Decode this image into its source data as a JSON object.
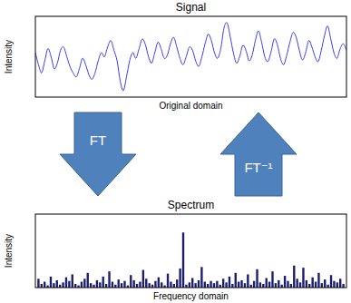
{
  "chart_data": [
    {
      "type": "line",
      "title": "Signal",
      "x_label": "Original domain",
      "y_label": "Intensity",
      "color": "#3a3aef",
      "tick_labels": false,
      "xlim": [
        0,
        99
      ],
      "ylim": [
        0,
        100
      ],
      "x": [
        0,
        1,
        2,
        3,
        4,
        5,
        6,
        7,
        8,
        9,
        10,
        11,
        12,
        13,
        14,
        15,
        16,
        17,
        18,
        19,
        20,
        21,
        22,
        23,
        24,
        25,
        26,
        27,
        28,
        29,
        30,
        31,
        32,
        33,
        34,
        35,
        36,
        37,
        38,
        39,
        40,
        41,
        42,
        43,
        44,
        45,
        46,
        47,
        48,
        49,
        50,
        51,
        52,
        53,
        54,
        55,
        56,
        57,
        58,
        59,
        60,
        61,
        62,
        63,
        64,
        65,
        66,
        67,
        68,
        69,
        70,
        71,
        72,
        73,
        74,
        75,
        76,
        77,
        78,
        79,
        80,
        81,
        82,
        83,
        84,
        85,
        86,
        87,
        88,
        89,
        90,
        91,
        92,
        93,
        94,
        95,
        96,
        97,
        98,
        99
      ],
      "values": [
        55,
        40,
        30,
        45,
        60,
        50,
        35,
        42,
        58,
        62,
        50,
        38,
        30,
        25,
        35,
        48,
        40,
        28,
        22,
        30,
        45,
        55,
        50,
        62,
        70,
        58,
        45,
        20,
        8,
        25,
        45,
        55,
        48,
        60,
        72,
        65,
        50,
        42,
        55,
        68,
        60,
        48,
        52,
        66,
        74,
        62,
        48,
        40,
        50,
        62,
        58,
        45,
        38,
        50,
        66,
        78,
        70,
        55,
        48,
        60,
        85,
        92,
        75,
        55,
        42,
        50,
        64,
        58,
        45,
        52,
        70,
        82,
        68,
        50,
        44,
        56,
        72,
        65,
        48,
        40,
        52,
        68,
        80,
        74,
        58,
        46,
        55,
        70,
        62,
        50,
        44,
        58,
        76,
        88,
        72,
        55,
        48,
        60,
        66,
        58
      ]
    },
    {
      "type": "bar",
      "title": "Spectrum",
      "x_label": "Frequency domain",
      "y_label": "Intensity",
      "color": "#1c1c70",
      "tick_labels": false,
      "xlim": [
        -1,
        100
      ],
      "ylim": [
        0,
        100
      ],
      "x": [
        0,
        1,
        2,
        3,
        4,
        5,
        6,
        7,
        8,
        9,
        10,
        11,
        12,
        13,
        14,
        15,
        16,
        17,
        18,
        19,
        20,
        21,
        22,
        23,
        24,
        25,
        26,
        27,
        28,
        29,
        30,
        31,
        32,
        33,
        34,
        35,
        36,
        37,
        38,
        39,
        40,
        41,
        42,
        43,
        44,
        45,
        46,
        47,
        48,
        49,
        50,
        51,
        52,
        53,
        54,
        55,
        56,
        57,
        58,
        59,
        60,
        61,
        62,
        63,
        64,
        65,
        66,
        67,
        68,
        69,
        70,
        71,
        72,
        73,
        74,
        75,
        76,
        77,
        78,
        79,
        80,
        81,
        82,
        83,
        84,
        85,
        86,
        87,
        88,
        89,
        90,
        91,
        92,
        93,
        94,
        95,
        96,
        97,
        98,
        99
      ],
      "values": [
        12,
        5,
        8,
        3,
        15,
        6,
        10,
        4,
        7,
        14,
        9,
        18,
        5,
        3,
        8,
        12,
        20,
        6,
        4,
        10,
        7,
        15,
        5,
        22,
        8,
        4,
        11,
        6,
        9,
        3,
        17,
        10,
        5,
        8,
        24,
        12,
        6,
        4,
        9,
        14,
        7,
        3,
        19,
        8,
        5,
        11,
        26,
        75,
        4,
        7,
        13,
        6,
        10,
        28,
        8,
        5,
        9,
        6,
        9,
        4,
        12,
        7,
        15,
        5,
        20,
        8,
        10,
        6,
        18,
        4,
        9,
        25,
        7,
        5,
        13,
        8,
        22,
        6,
        10,
        4,
        16,
        9,
        5,
        30,
        12,
        7,
        27,
        10,
        5,
        14,
        8,
        20,
        6,
        11,
        4,
        17,
        9,
        7,
        12,
        5
      ]
    }
  ],
  "diagram": {
    "arrows": [
      {
        "label": "FT",
        "direction": "down"
      },
      {
        "label": "FT⁻¹",
        "direction": "up"
      }
    ]
  }
}
